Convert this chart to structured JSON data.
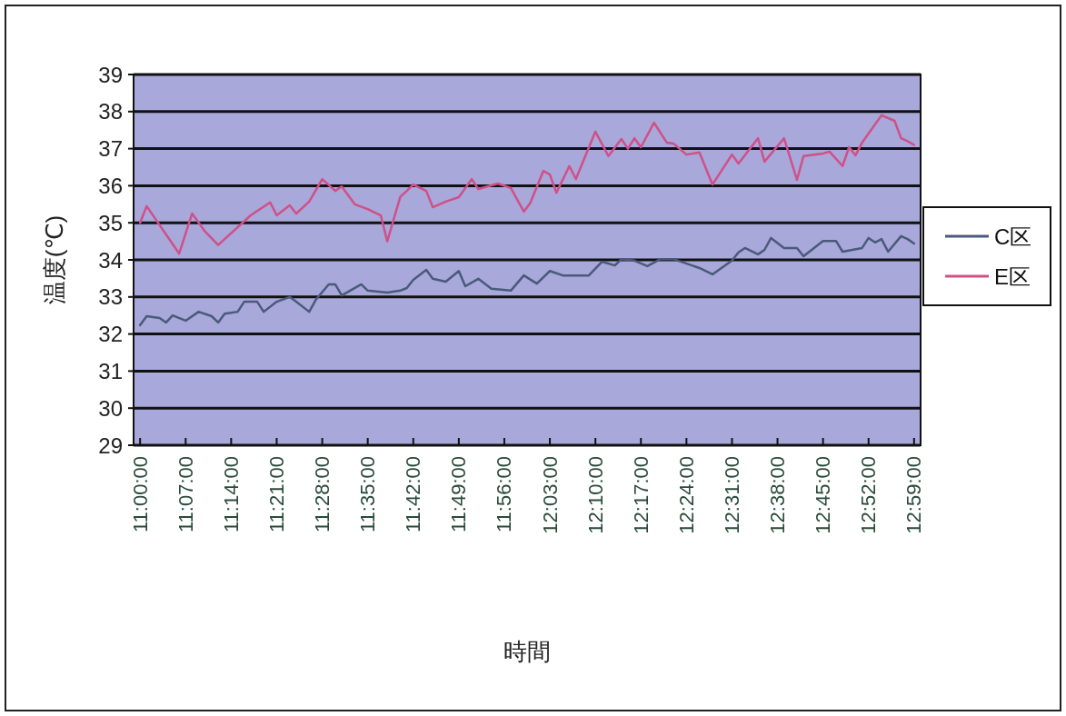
{
  "chart_data": {
    "type": "line",
    "xlabel": "時間",
    "ylabel": "温度(℃)",
    "xlim": [
      10.9833,
      13.0
    ],
    "ylim": [
      29,
      39
    ],
    "xticks": [
      {
        "value": 11,
        "label": "11:00:00"
      },
      {
        "value": 11.1167,
        "label": "11:07:00"
      },
      {
        "value": 11.2333,
        "label": "11:14:00"
      },
      {
        "value": 11.35,
        "label": "11:21:00"
      },
      {
        "value": 11.4667,
        "label": "11:28:00"
      },
      {
        "value": 11.5833,
        "label": "11:35:00"
      },
      {
        "value": 11.7,
        "label": "11:42:00"
      },
      {
        "value": 11.8167,
        "label": "11:49:00"
      },
      {
        "value": 11.9333,
        "label": "11:56:00"
      },
      {
        "value": 12.05,
        "label": "12:03:00"
      },
      {
        "value": 12.1667,
        "label": "12:10:00"
      },
      {
        "value": 12.2833,
        "label": "12:17:00"
      },
      {
        "value": 12.4,
        "label": "12:24:00"
      },
      {
        "value": 12.5167,
        "label": "12:31:00"
      },
      {
        "value": 12.6333,
        "label": "12:38:00"
      },
      {
        "value": 12.75,
        "label": "12:45:00"
      },
      {
        "value": 12.8667,
        "label": "12:52:00"
      },
      {
        "value": 12.9833,
        "label": "12:59:00"
      }
    ],
    "yticks": [
      29,
      30,
      31,
      32,
      33,
      34,
      35,
      36,
      37,
      38,
      39
    ],
    "grid": "y",
    "legend": "right",
    "series": [
      {
        "name": "C区",
        "color": "#4a5a7a",
        "x": [
          11,
          11.0167,
          11.05,
          11.0667,
          11.0833,
          11.1167,
          11.15,
          11.1833,
          11.2,
          11.2167,
          11.25,
          11.2667,
          11.3,
          11.3167,
          11.35,
          11.3833,
          11.4,
          11.4333,
          11.45,
          11.4833,
          11.5,
          11.5167,
          11.5667,
          11.5833,
          11.6333,
          11.6667,
          11.6833,
          11.7,
          11.7333,
          11.75,
          11.7833,
          11.8167,
          11.8333,
          11.8667,
          11.9,
          11.95,
          11.9833,
          12.0167,
          12.05,
          12.0833,
          12.15,
          12.1833,
          12.2167,
          12.2333,
          12.2667,
          12.3,
          12.3333,
          12.3667,
          12.4333,
          12.4667,
          12.5167,
          12.5333,
          12.55,
          12.5833,
          12.6,
          12.6167,
          12.65,
          12.6833,
          12.7,
          12.75,
          12.7833,
          12.8,
          12.85,
          12.8667,
          12.8833,
          12.9,
          12.9167,
          12.95,
          12.9667,
          12.9833
        ],
        "values": [
          32.24,
          32.48,
          32.43,
          32.31,
          32.5,
          32.36,
          32.6,
          32.48,
          32.31,
          32.55,
          32.6,
          32.87,
          32.87,
          32.6,
          32.87,
          33.0,
          32.87,
          32.6,
          32.92,
          33.34,
          33.34,
          33.04,
          33.34,
          33.17,
          33.12,
          33.17,
          33.24,
          33.46,
          33.73,
          33.49,
          33.41,
          33.7,
          33.29,
          33.49,
          33.22,
          33.17,
          33.58,
          33.36,
          33.7,
          33.58,
          33.58,
          33.95,
          33.85,
          34.02,
          33.98,
          33.83,
          34.02,
          34.02,
          33.78,
          33.61,
          33.98,
          34.2,
          34.32,
          34.15,
          34.27,
          34.59,
          34.32,
          34.32,
          34.1,
          34.51,
          34.51,
          34.22,
          34.32,
          34.59,
          34.47,
          34.56,
          34.22,
          34.64,
          34.56,
          34.44
        ]
      },
      {
        "name": "E区",
        "color": "#d05088",
        "x": [
          11,
          11.0167,
          11.1,
          11.1333,
          11.1667,
          11.2,
          11.2833,
          11.3333,
          11.35,
          11.3833,
          11.4,
          11.4333,
          11.4667,
          11.5,
          11.5167,
          11.55,
          11.5833,
          11.6167,
          11.6333,
          11.6667,
          11.6833,
          11.7,
          11.7333,
          11.75,
          11.7833,
          11.8167,
          11.85,
          11.8667,
          11.9167,
          11.95,
          11.9833,
          12,
          12.0333,
          12.05,
          12.0667,
          12.1,
          12.1167,
          12.1667,
          12.2,
          12.2333,
          12.25,
          12.2667,
          12.2833,
          12.3167,
          12.35,
          12.3667,
          12.4,
          12.4333,
          12.4667,
          12.5167,
          12.5333,
          12.5833,
          12.6,
          12.65,
          12.6833,
          12.7,
          12.75,
          12.7667,
          12.8,
          12.8167,
          12.8333,
          12.85,
          12.9,
          12.9333,
          12.95,
          12.9667,
          12.9833
        ],
        "values": [
          35.0,
          35.45,
          34.17,
          35.25,
          34.76,
          34.4,
          35.2,
          35.55,
          35.2,
          35.47,
          35.25,
          35.57,
          36.18,
          35.86,
          35.98,
          35.5,
          35.37,
          35.2,
          34.5,
          35.7,
          35.86,
          36.03,
          35.86,
          35.42,
          35.57,
          35.69,
          36.18,
          35.91,
          36.06,
          35.94,
          35.3,
          35.54,
          36.4,
          36.3,
          35.81,
          36.53,
          36.18,
          37.46,
          36.8,
          37.26,
          37.0,
          37.28,
          37.04,
          37.7,
          37.16,
          37.14,
          36.84,
          36.9,
          36.03,
          36.84,
          36.6,
          37.28,
          36.65,
          37.28,
          36.16,
          36.8,
          36.87,
          36.92,
          36.53,
          37.04,
          36.82,
          37.16,
          37.9,
          37.75,
          37.28,
          37.2,
          37.1
        ]
      }
    ]
  }
}
